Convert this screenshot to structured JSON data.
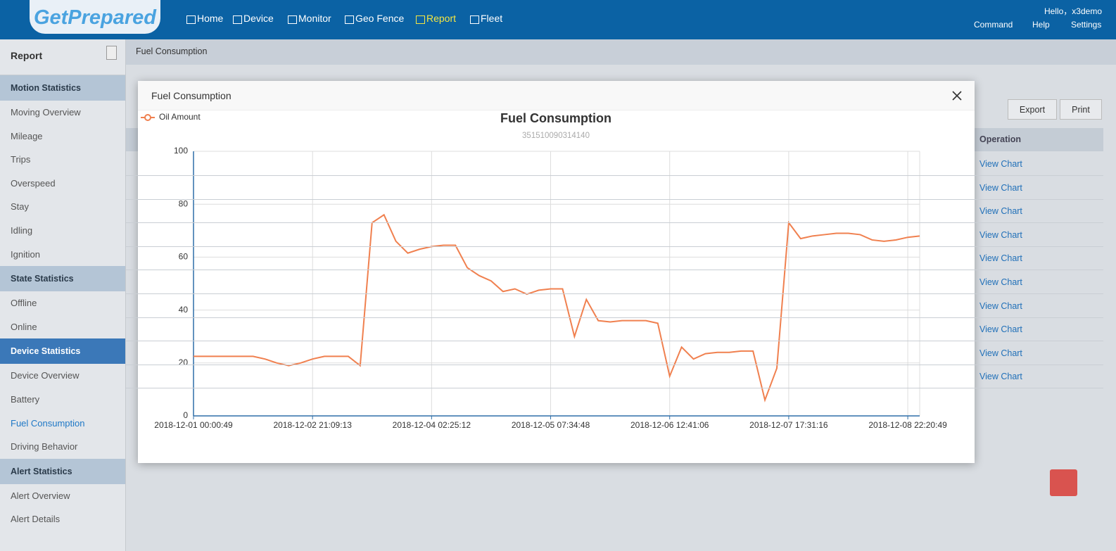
{
  "header": {
    "logo": "GetPrepared",
    "nav": [
      "Home",
      "Device",
      "Monitor",
      "Geo Fence",
      "Report",
      "Fleet"
    ],
    "active_nav": "Report",
    "greeting": "Hello，x3demo",
    "links": [
      "Command",
      "Help",
      "Settings"
    ]
  },
  "sidebar": {
    "title": "Report",
    "active_item": "Fuel Consumption",
    "groups": [
      {
        "title": "Motion Statistics",
        "items": [
          "Moving Overview",
          "Mileage",
          "Trips",
          "Overspeed",
          "Stay",
          "Idling",
          "Ignition"
        ]
      },
      {
        "title": "State Statistics",
        "items": [
          "Offline",
          "Online"
        ]
      },
      {
        "title": "Device Statistics",
        "items": [
          "Device Overview",
          "Battery",
          "Fuel Consumption",
          "Driving Behavior"
        ]
      },
      {
        "title": "Alert Statistics",
        "items": [
          "Alert Overview",
          "Alert Details"
        ]
      }
    ]
  },
  "content": {
    "breadcrumb": "Fuel Consumption",
    "buttons": [
      "Export",
      "Print"
    ],
    "column": "Operation",
    "rows": [
      "View Chart",
      "View Chart",
      "View Chart",
      "View Chart",
      "View Chart",
      "View Chart",
      "View Chart",
      "View Chart",
      "View Chart",
      "View Chart"
    ]
  },
  "modal": {
    "title": "Fuel Consumption"
  },
  "chart_data": {
    "type": "line",
    "title": "Fuel Consumption",
    "subtitle": "351510090314140",
    "categories": [
      "2018-12-01 00:00:49",
      null,
      null,
      null,
      null,
      null,
      null,
      null,
      null,
      null,
      "2018-12-02 21:09:13",
      null,
      null,
      null,
      null,
      null,
      null,
      null,
      null,
      null,
      "2018-12-04 02:25:12",
      null,
      null,
      null,
      null,
      null,
      null,
      null,
      null,
      null,
      "2018-12-05 07:34:48",
      null,
      null,
      null,
      null,
      null,
      null,
      null,
      null,
      null,
      "2018-12-06 12:41:06",
      null,
      null,
      null,
      null,
      null,
      null,
      null,
      null,
      null,
      "2018-12-07 17:31:16",
      null,
      null,
      null,
      null,
      null,
      null,
      null,
      null,
      null,
      "2018-12-08 22:20:49",
      null
    ],
    "series": [
      {
        "name": "Oil Amount",
        "color": "#f0804f",
        "values": [
          22.5,
          22.5,
          22.5,
          22.5,
          22.5,
          22.5,
          21.5,
          20,
          19,
          20,
          21.5,
          22.5,
          22.5,
          22.5,
          19,
          73,
          76,
          66,
          61.5,
          63,
          64,
          64.5,
          64.5,
          56,
          53,
          51,
          47,
          48,
          46,
          47.5,
          48,
          48,
          30,
          44,
          36,
          35.5,
          36,
          36,
          36,
          35,
          15,
          26,
          21.5,
          23.5,
          24,
          24,
          24.5,
          24.5,
          6,
          18,
          73,
          67,
          68,
          68.5,
          69,
          69,
          68.5,
          66.5,
          66,
          66.5,
          67.5,
          68
        ]
      }
    ],
    "ylim": [
      0,
      100
    ],
    "yticks": [
      0,
      20,
      40,
      60,
      80,
      100
    ],
    "grid": true,
    "legend": "top-left"
  }
}
